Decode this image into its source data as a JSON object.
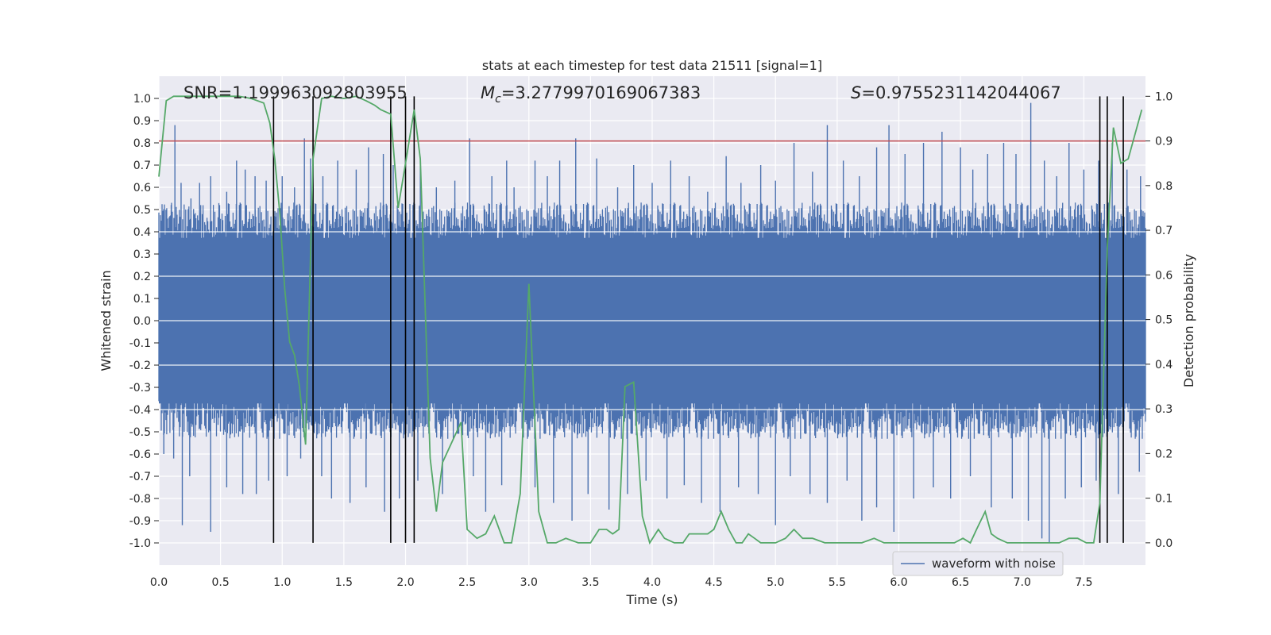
{
  "chart_data": {
    "type": "line",
    "title": "stats at each timestep for test data 21511 [signal=1]",
    "xlabel": "Time (s)",
    "ylabel": "Whitened strain",
    "y2label": "Detection probability",
    "xlim": [
      0.0,
      8.0
    ],
    "ylim": [
      -1.1,
      1.1
    ],
    "y2lim": [
      -0.05,
      1.045
    ],
    "xticks": [
      "0.0",
      "0.5",
      "1.0",
      "1.5",
      "2.0",
      "2.5",
      "3.0",
      "3.5",
      "4.0",
      "4.5",
      "5.0",
      "5.5",
      "6.0",
      "6.5",
      "7.0",
      "7.5"
    ],
    "yticks": [
      "1.0",
      "0.9",
      "0.8",
      "0.7",
      "0.6",
      "0.5",
      "0.4",
      "0.3",
      "0.2",
      "0.1",
      "0.0",
      "-0.1",
      "-0.2",
      "-0.3",
      "-0.4",
      "-0.5",
      "-0.6",
      "-0.7",
      "-0.8",
      "-0.9",
      "-1.0"
    ],
    "y2ticks": [
      "1.0",
      "0.9",
      "0.8",
      "0.7",
      "0.6",
      "0.5",
      "0.4",
      "0.3",
      "0.2",
      "0.1",
      "0.0"
    ],
    "annotations": {
      "snr": "SNR=1.199963092803955",
      "mc_symbol": "M",
      "mc_sub": "c",
      "mc_value": "=3.2779970169067383",
      "s_symbol": "S",
      "s_value": "=0.9755231142044067"
    },
    "threshold": {
      "y2": 0.9,
      "color": "#c44e52"
    },
    "vertical_lines": [
      0.93,
      1.25,
      1.88,
      2.0,
      2.07,
      7.63,
      7.69,
      7.82
    ],
    "waveform": {
      "name": "waveform with noise",
      "color": "#4c72b0",
      "base_amplitude": 0.38,
      "spikes": [
        {
          "t": 0.02,
          "v": 0.45
        },
        {
          "t": 0.1,
          "v": 0.52
        },
        {
          "t": 0.13,
          "v": 0.88
        },
        {
          "t": 0.18,
          "v": 0.62
        },
        {
          "t": 0.26,
          "v": 0.55
        },
        {
          "t": 0.33,
          "v": 0.62
        },
        {
          "t": 0.42,
          "v": 0.65
        },
        {
          "t": 0.55,
          "v": 0.58
        },
        {
          "t": 0.63,
          "v": 0.72
        },
        {
          "t": 0.7,
          "v": 0.68
        },
        {
          "t": 0.78,
          "v": 0.65
        },
        {
          "t": 0.87,
          "v": 0.63
        },
        {
          "t": 1.0,
          "v": 0.65
        },
        {
          "t": 1.1,
          "v": 0.6
        },
        {
          "t": 1.18,
          "v": 0.82
        },
        {
          "t": 1.23,
          "v": 0.73
        },
        {
          "t": 1.33,
          "v": 0.65
        },
        {
          "t": 1.45,
          "v": 0.72
        },
        {
          "t": 1.6,
          "v": 0.68
        },
        {
          "t": 1.7,
          "v": 0.78
        },
        {
          "t": 1.82,
          "v": 0.75
        },
        {
          "t": 1.9,
          "v": 0.7
        },
        {
          "t": 2.12,
          "v": 0.72
        },
        {
          "t": 2.25,
          "v": 0.6
        },
        {
          "t": 2.4,
          "v": 0.63
        },
        {
          "t": 2.52,
          "v": 0.82
        },
        {
          "t": 2.7,
          "v": 0.65
        },
        {
          "t": 2.82,
          "v": 0.72
        },
        {
          "t": 2.88,
          "v": 0.6
        },
        {
          "t": 3.05,
          "v": 0.72
        },
        {
          "t": 3.15,
          "v": 0.65
        },
        {
          "t": 3.25,
          "v": 0.72
        },
        {
          "t": 3.38,
          "v": 0.82
        },
        {
          "t": 3.55,
          "v": 0.73
        },
        {
          "t": 3.72,
          "v": 0.6
        },
        {
          "t": 3.85,
          "v": 0.7
        },
        {
          "t": 4.0,
          "v": 0.62
        },
        {
          "t": 4.15,
          "v": 0.72
        },
        {
          "t": 4.3,
          "v": 0.65
        },
        {
          "t": 4.45,
          "v": 0.58
        },
        {
          "t": 4.6,
          "v": 0.74
        },
        {
          "t": 4.72,
          "v": 0.62
        },
        {
          "t": 4.88,
          "v": 0.7
        },
        {
          "t": 5.0,
          "v": 0.63
        },
        {
          "t": 5.15,
          "v": 0.8
        },
        {
          "t": 5.3,
          "v": 0.67
        },
        {
          "t": 5.42,
          "v": 0.88
        },
        {
          "t": 5.55,
          "v": 0.72
        },
        {
          "t": 5.68,
          "v": 0.65
        },
        {
          "t": 5.82,
          "v": 0.78
        },
        {
          "t": 5.92,
          "v": 0.88
        },
        {
          "t": 6.05,
          "v": 0.75
        },
        {
          "t": 6.2,
          "v": 0.8
        },
        {
          "t": 6.35,
          "v": 0.85
        },
        {
          "t": 6.5,
          "v": 0.78
        },
        {
          "t": 6.6,
          "v": 0.68
        },
        {
          "t": 6.72,
          "v": 0.75
        },
        {
          "t": 6.85,
          "v": 0.8
        },
        {
          "t": 6.95,
          "v": 0.75
        },
        {
          "t": 7.07,
          "v": 0.98
        },
        {
          "t": 7.18,
          "v": 0.72
        },
        {
          "t": 7.28,
          "v": 0.65
        },
        {
          "t": 7.38,
          "v": 0.8
        },
        {
          "t": 7.5,
          "v": 0.68
        },
        {
          "t": 7.62,
          "v": 0.72
        },
        {
          "t": 7.73,
          "v": 0.8
        },
        {
          "t": 7.85,
          "v": 0.68
        },
        {
          "t": 7.96,
          "v": 0.65
        }
      ],
      "neg_spikes": [
        {
          "t": 0.04,
          "v": -0.6
        },
        {
          "t": 0.12,
          "v": -0.62
        },
        {
          "t": 0.19,
          "v": -0.92
        },
        {
          "t": 0.25,
          "v": -0.7
        },
        {
          "t": 0.42,
          "v": -0.95
        },
        {
          "t": 0.55,
          "v": -0.75
        },
        {
          "t": 0.68,
          "v": -0.78
        },
        {
          "t": 0.79,
          "v": -0.78
        },
        {
          "t": 0.89,
          "v": -0.72
        },
        {
          "t": 1.04,
          "v": -0.7
        },
        {
          "t": 1.15,
          "v": -0.62
        },
        {
          "t": 1.32,
          "v": -0.7
        },
        {
          "t": 1.4,
          "v": -0.8
        },
        {
          "t": 1.55,
          "v": -0.82
        },
        {
          "t": 1.68,
          "v": -0.75
        },
        {
          "t": 1.83,
          "v": -0.86
        },
        {
          "t": 1.95,
          "v": -0.8
        },
        {
          "t": 2.1,
          "v": -0.72
        },
        {
          "t": 2.3,
          "v": -0.78
        },
        {
          "t": 2.55,
          "v": -0.7
        },
        {
          "t": 2.65,
          "v": -0.86
        },
        {
          "t": 2.78,
          "v": -0.74
        },
        {
          "t": 3.05,
          "v": -0.75
        },
        {
          "t": 3.2,
          "v": -0.82
        },
        {
          "t": 3.35,
          "v": -0.9
        },
        {
          "t": 3.48,
          "v": -0.78
        },
        {
          "t": 3.65,
          "v": -0.85
        },
        {
          "t": 3.8,
          "v": -0.78
        },
        {
          "t": 3.95,
          "v": -0.72
        },
        {
          "t": 4.12,
          "v": -0.8
        },
        {
          "t": 4.26,
          "v": -0.74
        },
        {
          "t": 4.4,
          "v": -0.82
        },
        {
          "t": 4.55,
          "v": -0.86
        },
        {
          "t": 4.7,
          "v": -0.75
        },
        {
          "t": 4.86,
          "v": -0.78
        },
        {
          "t": 5.0,
          "v": -0.92
        },
        {
          "t": 5.12,
          "v": -0.7
        },
        {
          "t": 5.28,
          "v": -0.78
        },
        {
          "t": 5.42,
          "v": -0.82
        },
        {
          "t": 5.58,
          "v": -0.72
        },
        {
          "t": 5.7,
          "v": -0.9
        },
        {
          "t": 5.82,
          "v": -0.84
        },
        {
          "t": 5.96,
          "v": -0.95
        },
        {
          "t": 6.12,
          "v": -0.8
        },
        {
          "t": 6.28,
          "v": -0.75
        },
        {
          "t": 6.42,
          "v": -0.8
        },
        {
          "t": 6.58,
          "v": -0.7
        },
        {
          "t": 6.75,
          "v": -0.84
        },
        {
          "t": 6.92,
          "v": -0.8
        },
        {
          "t": 7.05,
          "v": -0.9
        },
        {
          "t": 7.16,
          "v": -0.98
        },
        {
          "t": 7.22,
          "v": -1.0
        },
        {
          "t": 7.35,
          "v": -0.8
        },
        {
          "t": 7.48,
          "v": -0.75
        },
        {
          "t": 7.6,
          "v": -0.72
        },
        {
          "t": 7.78,
          "v": -0.78
        },
        {
          "t": 7.95,
          "v": -0.68
        }
      ]
    },
    "probability": {
      "name": "detection probability",
      "color": "#55a868",
      "x": [
        0.0,
        0.06,
        0.12,
        0.2,
        0.35,
        0.5,
        0.65,
        0.75,
        0.85,
        0.9,
        0.94,
        0.98,
        1.02,
        1.06,
        1.1,
        1.14,
        1.19,
        1.25,
        1.32,
        1.4,
        1.5,
        1.6,
        1.68,
        1.75,
        1.8,
        1.88,
        1.94,
        2.0,
        2.07,
        2.12,
        2.2,
        2.25,
        2.3,
        2.4,
        2.45,
        2.5,
        2.58,
        2.65,
        2.72,
        2.8,
        2.86,
        2.93,
        3.0,
        3.08,
        3.15,
        3.22,
        3.3,
        3.4,
        3.5,
        3.57,
        3.63,
        3.68,
        3.73,
        3.78,
        3.85,
        3.92,
        3.98,
        4.05,
        4.1,
        4.18,
        4.25,
        4.3,
        4.38,
        4.45,
        4.5,
        4.56,
        4.62,
        4.68,
        4.73,
        4.78,
        4.83,
        4.88,
        4.93,
        5.0,
        5.08,
        5.15,
        5.22,
        5.3,
        5.4,
        5.5,
        5.6,
        5.7,
        5.8,
        5.88,
        5.95,
        6.05,
        6.2,
        6.35,
        6.45,
        6.52,
        6.58,
        6.63,
        6.7,
        6.75,
        6.8,
        6.88,
        7.0,
        7.1,
        7.16,
        7.22,
        7.3,
        7.38,
        7.45,
        7.52,
        7.58,
        7.63,
        7.69,
        7.74,
        7.8,
        7.86,
        7.92,
        7.97
      ],
      "values": [
        0.82,
        0.99,
        1.0,
        1.0,
        1.0,
        1.0,
        1.0,
        0.995,
        0.985,
        0.94,
        0.86,
        0.74,
        0.57,
        0.45,
        0.42,
        0.35,
        0.22,
        0.86,
        0.995,
        1.0,
        0.995,
        1.0,
        0.99,
        0.98,
        0.97,
        0.96,
        0.75,
        0.85,
        0.97,
        0.86,
        0.19,
        0.07,
        0.18,
        0.24,
        0.27,
        0.03,
        0.01,
        0.02,
        0.06,
        0.0,
        0.0,
        0.11,
        0.58,
        0.07,
        0.0,
        0.0,
        0.01,
        0.0,
        0.0,
        0.03,
        0.03,
        0.02,
        0.03,
        0.35,
        0.36,
        0.06,
        0.0,
        0.03,
        0.01,
        0.0,
        0.0,
        0.02,
        0.02,
        0.02,
        0.03,
        0.07,
        0.03,
        0.0,
        0.0,
        0.02,
        0.01,
        0.0,
        0.0,
        0.0,
        0.01,
        0.03,
        0.01,
        0.01,
        0.0,
        0.0,
        0.0,
        0.0,
        0.01,
        0.0,
        0.0,
        0.0,
        0.0,
        0.0,
        0.0,
        0.01,
        0.0,
        0.03,
        0.07,
        0.02,
        0.01,
        0.0,
        0.0,
        0.0,
        0.0,
        0.0,
        0.0,
        0.01,
        0.01,
        0.0,
        0.0,
        0.09,
        0.66,
        0.93,
        0.85,
        0.86,
        0.92,
        0.97
      ]
    },
    "legend": {
      "label": "waveform with noise",
      "placement": "lower-center-right"
    }
  }
}
